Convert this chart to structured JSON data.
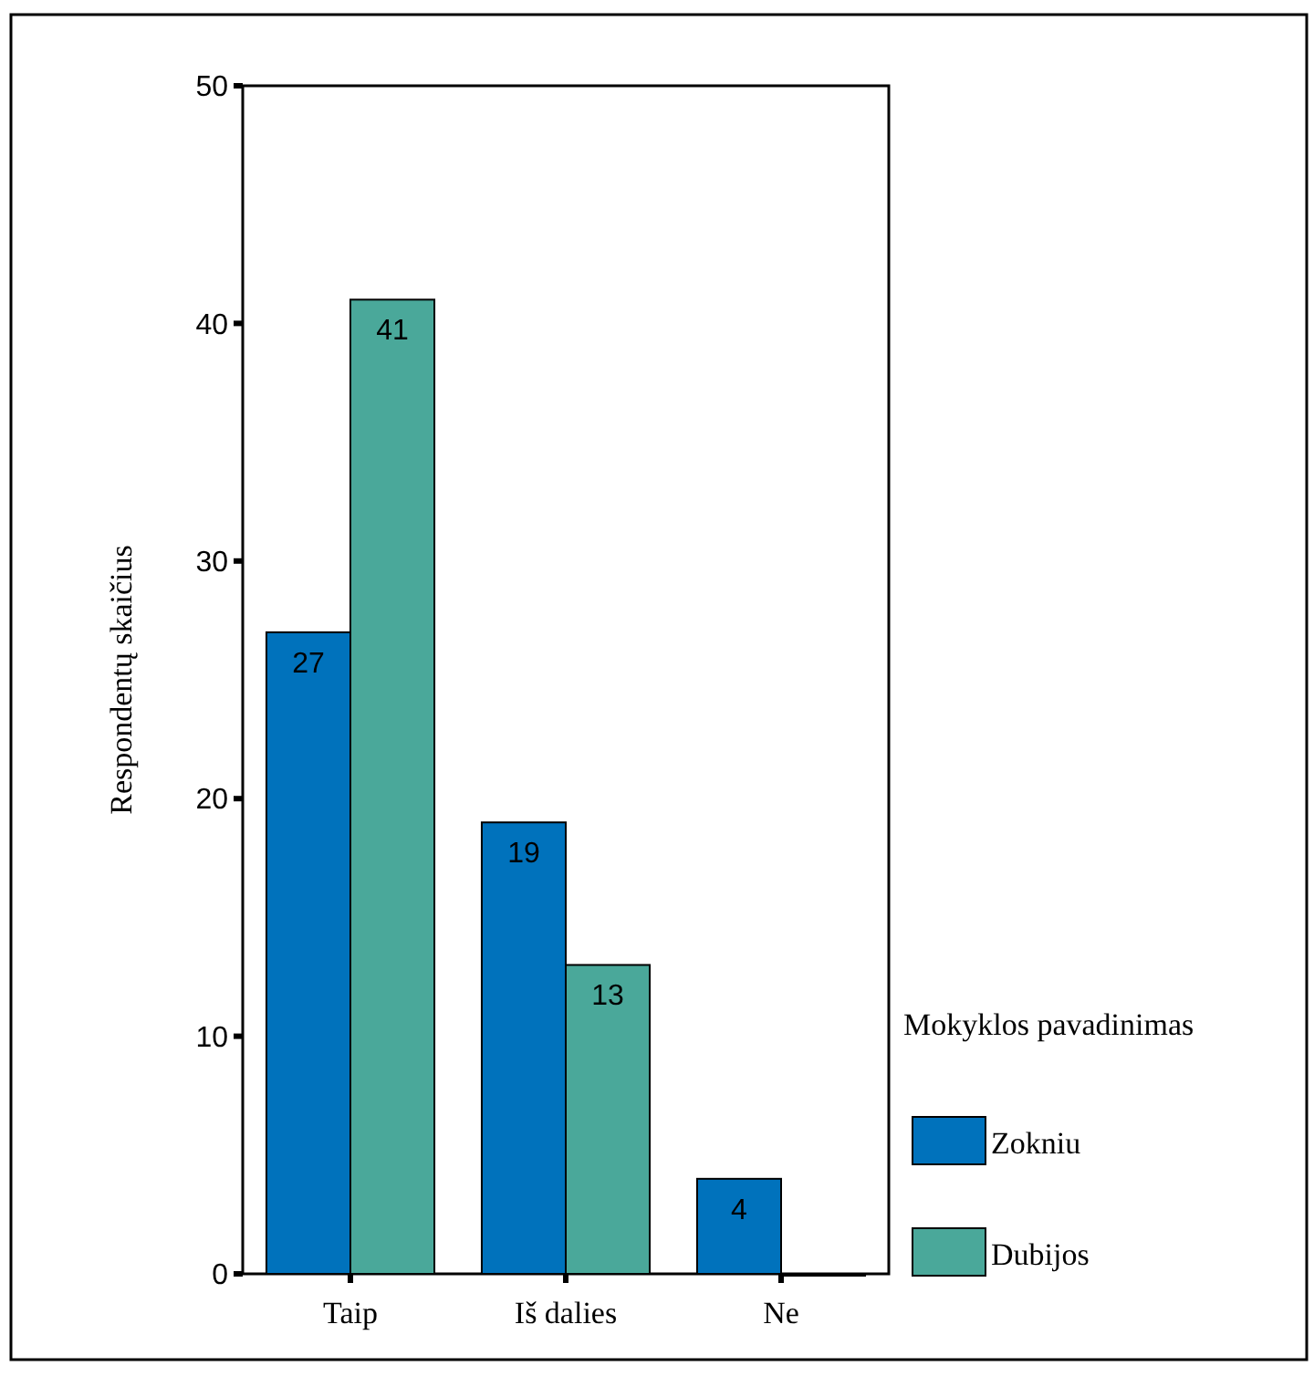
{
  "chart_data": {
    "type": "bar",
    "ylabel": "Respondentų skaičius",
    "legend_title": "Mokyklos pavadinimas",
    "categories": [
      "Taip",
      "Iš dalies",
      "Ne"
    ],
    "series": [
      {
        "name": "Zokniu",
        "color": "#0072bc",
        "values": [
          27,
          19,
          4
        ],
        "value_labels": [
          "27",
          "19",
          "4"
        ]
      },
      {
        "name": "Dubijos",
        "color": "#4aa89a",
        "values": [
          41,
          13,
          0
        ],
        "value_labels": [
          "41",
          "13",
          null
        ]
      }
    ],
    "ylim": [
      0,
      50
    ],
    "yticks": [
      0,
      10,
      20,
      30,
      40,
      50
    ],
    "grid": false,
    "legend": "right"
  }
}
